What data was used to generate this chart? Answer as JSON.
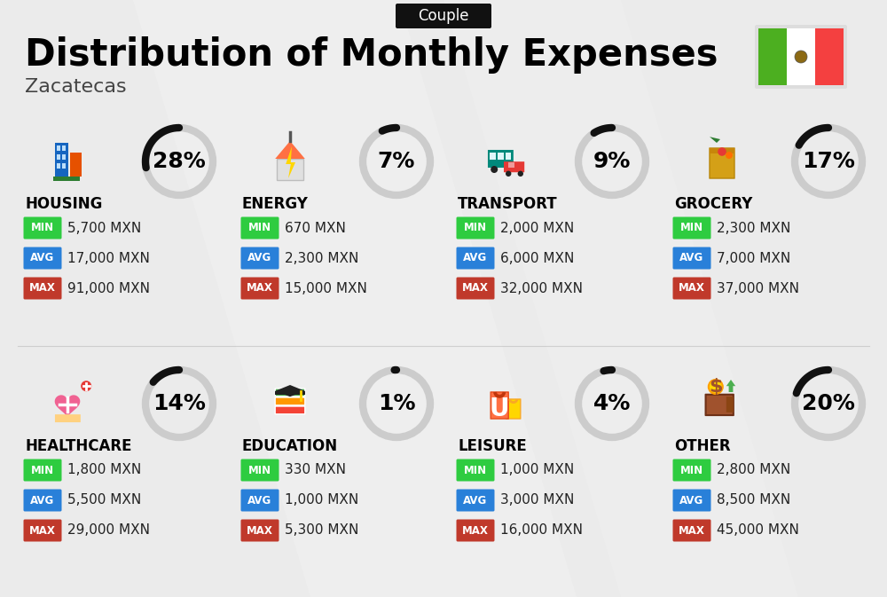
{
  "title": "Distribution of Monthly Expenses",
  "subtitle": "Zacatecas",
  "badge": "Couple",
  "bg_color": "#ebebeb",
  "categories": [
    {
      "name": "HOUSING",
      "pct": 28,
      "min_val": "5,700 MXN",
      "avg_val": "17,000 MXN",
      "max_val": "91,000 MXN",
      "col": 0,
      "row": 0
    },
    {
      "name": "ENERGY",
      "pct": 7,
      "min_val": "670 MXN",
      "avg_val": "2,300 MXN",
      "max_val": "15,000 MXN",
      "col": 1,
      "row": 0
    },
    {
      "name": "TRANSPORT",
      "pct": 9,
      "min_val": "2,000 MXN",
      "avg_val": "6,000 MXN",
      "max_val": "32,000 MXN",
      "col": 2,
      "row": 0
    },
    {
      "name": "GROCERY",
      "pct": 17,
      "min_val": "2,300 MXN",
      "avg_val": "7,000 MXN",
      "max_val": "37,000 MXN",
      "col": 3,
      "row": 0
    },
    {
      "name": "HEALTHCARE",
      "pct": 14,
      "min_val": "1,800 MXN",
      "avg_val": "5,500 MXN",
      "max_val": "29,000 MXN",
      "col": 0,
      "row": 1
    },
    {
      "name": "EDUCATION",
      "pct": 1,
      "min_val": "330 MXN",
      "avg_val": "1,000 MXN",
      "max_val": "5,300 MXN",
      "col": 1,
      "row": 1
    },
    {
      "name": "LEISURE",
      "pct": 4,
      "min_val": "1,000 MXN",
      "avg_val": "3,000 MXN",
      "max_val": "16,000 MXN",
      "col": 2,
      "row": 1
    },
    {
      "name": "OTHER",
      "pct": 20,
      "min_val": "2,800 MXN",
      "avg_val": "8,500 MXN",
      "max_val": "45,000 MXN",
      "col": 3,
      "row": 1
    }
  ],
  "min_color": "#2ecc40",
  "avg_color": "#2980d9",
  "max_color": "#c0392b",
  "arc_dark": "#111111",
  "arc_light": "#cccccc",
  "title_fontsize": 30,
  "subtitle_fontsize": 16,
  "badge_fontsize": 12,
  "cat_fontsize": 12,
  "val_fontsize": 11,
  "pct_fontsize": 18,
  "flag_green": "#4caf20",
  "flag_red": "#f44040",
  "flag_white": "#ffffff"
}
